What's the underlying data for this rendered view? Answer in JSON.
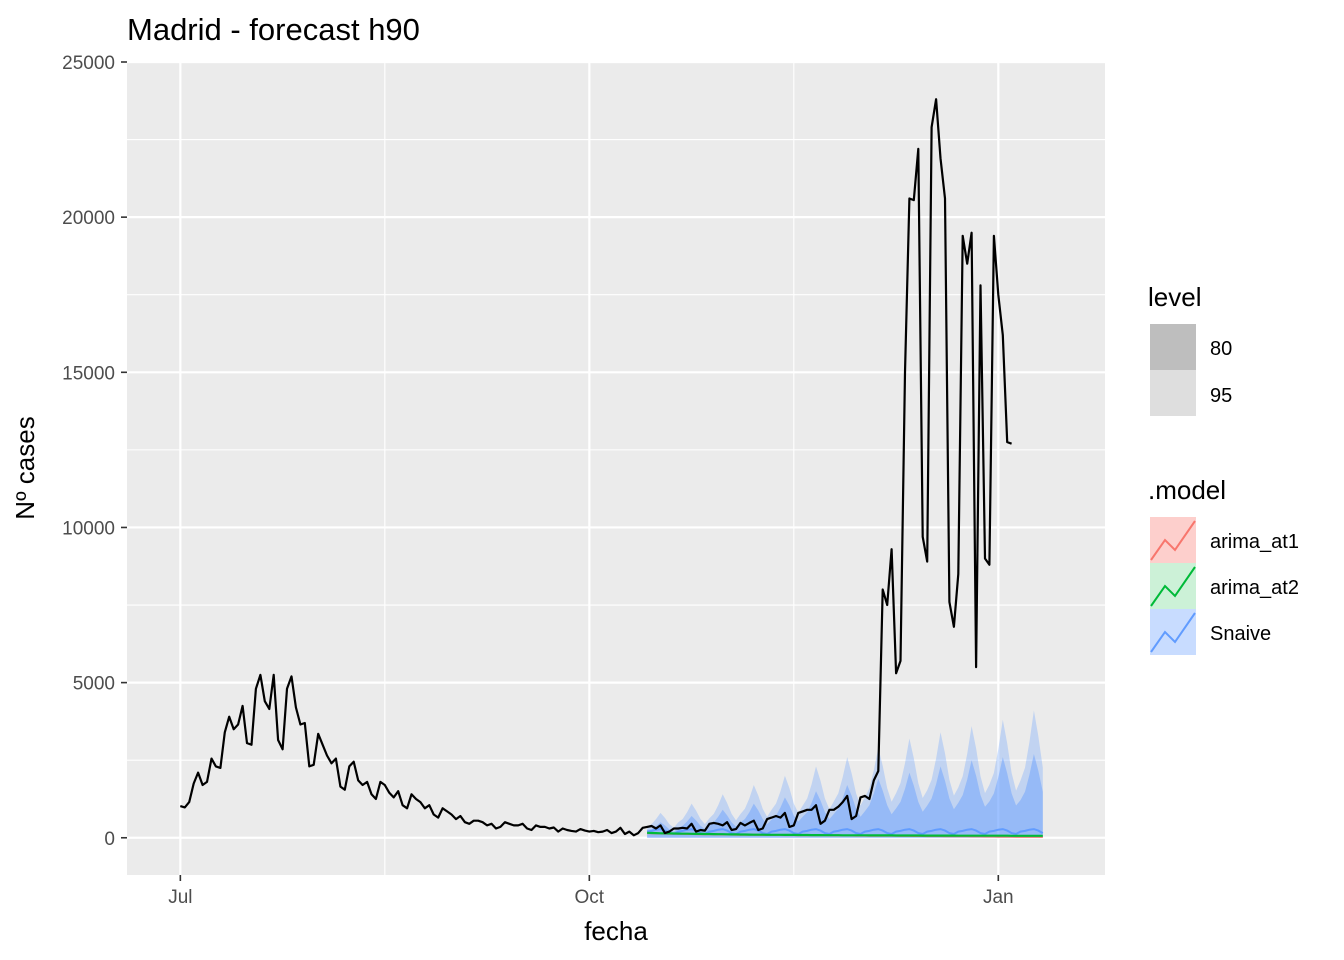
{
  "chart_data": {
    "type": "line",
    "title": "Madrid - forecast h90",
    "xlabel": "fecha",
    "ylabel": "Nº cases",
    "x_ticks": [
      "Jul",
      "Oct",
      "Jan"
    ],
    "x_tick_dates": [
      "2020-07-01",
      "2020-10-01",
      "2021-01-01"
    ],
    "x_range": [
      "2020-06-19",
      "2021-01-25"
    ],
    "y_ticks": [
      0,
      5000,
      10000,
      15000,
      20000,
      25000
    ],
    "ylim": [
      -1200,
      25000
    ],
    "grid": true,
    "legend_position": "right",
    "colors": {
      "panel": "#EBEBEB",
      "grid": "#FFFFFF",
      "actual": "#000000",
      "arima_at1": "#F8766D",
      "arima_at2": "#00BA38",
      "Snaive": "#619CFF",
      "level80_key": "#BEBEBE",
      "level95_key": "#DEDEDE"
    },
    "legend_level": {
      "title": "level",
      "items": [
        "80",
        "95"
      ]
    },
    "legend_model": {
      "title": ".model",
      "items": [
        "arima_at1",
        "arima_at2",
        "Snaive"
      ]
    },
    "actual": {
      "start": "2020-07-01",
      "values": [
        1020,
        980,
        1150,
        1750,
        2100,
        1700,
        1800,
        2550,
        2300,
        2250,
        3400,
        3900,
        3500,
        3650,
        4250,
        3050,
        3000,
        4800,
        5250,
        4400,
        4150,
        5250,
        3150,
        2850,
        4800,
        5200,
        4200,
        3650,
        3700,
        2300,
        2350,
        3350,
        3000,
        2650,
        2400,
        2550,
        1650,
        1550,
        2300,
        2450,
        1850,
        1700,
        1800,
        1400,
        1250,
        1800,
        1700,
        1450,
        1300,
        1500,
        1050,
        950,
        1400,
        1250,
        1150,
        950,
        1050,
        750,
        650,
        950,
        850,
        750,
        600,
        700,
        500,
        450,
        550,
        550,
        500,
        400,
        450,
        300,
        350,
        500,
        450,
        400,
        400,
        450,
        300,
        250,
        400,
        350,
        350,
        300,
        330,
        200,
        300,
        250,
        220,
        200,
        280,
        230,
        200,
        220,
        180,
        200,
        250,
        150,
        200,
        320,
        120,
        200,
        80,
        150,
        320,
        350,
        380,
        300,
        400,
        150,
        200,
        300,
        300,
        320,
        300,
        450,
        200,
        250,
        230,
        450,
        480,
        450,
        400,
        500,
        250,
        280,
        480,
        400,
        480,
        550,
        250,
        300,
        600,
        650,
        700,
        650,
        800,
        350,
        400,
        800,
        850,
        900,
        900,
        1050,
        450,
        550,
        900,
        900,
        1000,
        1150,
        1350,
        600,
        700,
        1300,
        1350,
        1250,
        1850,
        2150,
        8000,
        7500,
        9300,
        5300,
        5700,
        15000,
        20600,
        20550,
        22200,
        9700,
        8900,
        22900,
        23800,
        21900,
        20600,
        7600,
        6800,
        8500,
        19400,
        18500,
        19500,
        5500,
        17800,
        9000,
        8800,
        19400,
        17500,
        16200,
        12750,
        12700
      ]
    },
    "forecast": {
      "start": "2020-10-14",
      "arima_at1": [
        150,
        145,
        140,
        138,
        135,
        132,
        130,
        128,
        125,
        122,
        120,
        118,
        116,
        114,
        112,
        110,
        108,
        106,
        104,
        102,
        100,
        98,
        96,
        95,
        94,
        93,
        92,
        91,
        90,
        89,
        88,
        87,
        86,
        85,
        84,
        83,
        82,
        81,
        80,
        79,
        78,
        77,
        76,
        75,
        74,
        73,
        72,
        71,
        70,
        69,
        68,
        67,
        66,
        65,
        64,
        63,
        62,
        61,
        60,
        59,
        58,
        57,
        56,
        55,
        54,
        53,
        52,
        51,
        50,
        49,
        48,
        47,
        46,
        45,
        44,
        43,
        42,
        41,
        40,
        39,
        38,
        37,
        36,
        35,
        34,
        33,
        32,
        31,
        30,
        29
      ],
      "arima_at2": [
        160,
        155,
        150,
        145,
        142,
        140,
        138,
        135,
        132,
        130,
        128,
        126,
        124,
        122,
        120,
        118,
        116,
        114,
        112,
        110,
        108,
        106,
        104,
        102,
        100,
        99,
        98,
        97,
        96,
        95,
        94,
        93,
        92,
        91,
        90,
        89,
        88,
        87,
        86,
        85,
        84,
        83,
        82,
        81,
        80,
        80,
        79,
        79,
        78,
        78,
        77,
        77,
        76,
        76,
        75,
        75,
        74,
        74,
        73,
        73,
        72,
        72,
        71,
        71,
        70,
        70,
        70,
        69,
        69,
        69,
        68,
        68,
        68,
        67,
        67,
        67,
        66,
        66,
        66,
        65,
        65,
        65,
        64,
        64,
        64,
        63,
        63,
        63,
        62,
        62
      ],
      "Snaive": [
        200,
        220,
        260,
        280,
        230,
        150,
        120,
        200,
        220,
        260,
        280,
        230,
        150,
        120,
        200,
        220,
        260,
        280,
        230,
        150,
        120,
        200,
        220,
        260,
        280,
        230,
        150,
        120,
        200,
        220,
        260,
        280,
        230,
        150,
        120,
        200,
        220,
        260,
        280,
        230,
        150,
        120,
        200,
        220,
        260,
        280,
        230,
        150,
        120,
        200,
        220,
        260,
        280,
        230,
        150,
        120,
        200,
        220,
        260,
        280,
        230,
        150,
        120,
        200,
        220,
        260,
        280,
        230,
        150,
        120,
        200,
        220,
        260,
        280,
        230,
        150,
        120,
        200,
        220,
        260,
        280,
        230,
        150,
        120,
        200,
        220,
        260,
        280,
        230,
        150
      ],
      "Snaive_hi80_peaks": [
        500,
        700,
        900,
        1100,
        1300,
        1500,
        1700,
        1900,
        2100,
        2300,
        2500,
        2600,
        2700
      ],
      "Snaive_hi95_peaks": [
        800,
        1100,
        1400,
        1700,
        2000,
        2300,
        2600,
        2900,
        3200,
        3400,
        3600,
        3800,
        4100
      ]
    }
  }
}
